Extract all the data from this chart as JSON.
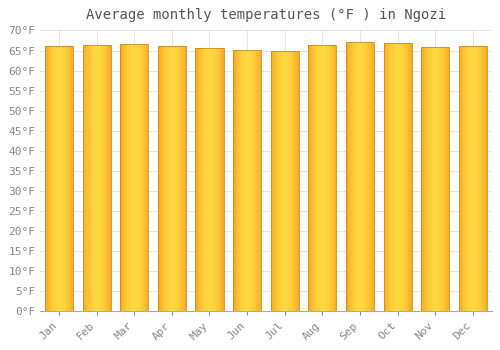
{
  "title": "Average monthly temperatures (°F ) in Ngozi",
  "months": [
    "Jan",
    "Feb",
    "Mar",
    "Apr",
    "May",
    "Jun",
    "Jul",
    "Aug",
    "Sep",
    "Oct",
    "Nov",
    "Dec"
  ],
  "values": [
    66.2,
    66.4,
    66.6,
    66.2,
    65.5,
    65.1,
    65.0,
    66.4,
    67.1,
    66.8,
    65.8,
    66.0
  ],
  "bar_color_center": "#FFD740",
  "bar_color_edge": "#F5A623",
  "bar_outline_color": "#D4891A",
  "background_color": "#FFFFFF",
  "grid_color": "#E0E0E0",
  "ylim": [
    0,
    70
  ],
  "yticks": [
    0,
    5,
    10,
    15,
    20,
    25,
    30,
    35,
    40,
    45,
    50,
    55,
    60,
    65,
    70
  ],
  "title_fontsize": 10,
  "tick_fontsize": 8,
  "font_color": "#888888",
  "title_color": "#555555",
  "bar_width": 0.75,
  "gradient_steps": 50
}
